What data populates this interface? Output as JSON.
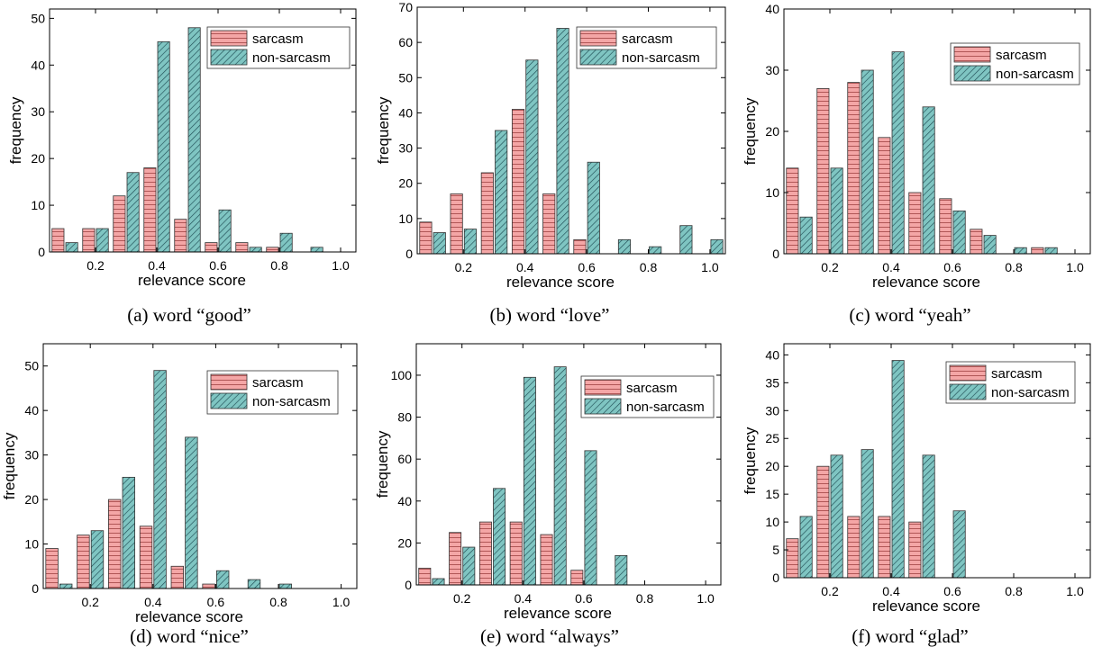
{
  "colors": {
    "sarcasm_fill": "#f4a6a6",
    "sarcasm_hatch": "#b05656",
    "non_sarcasm_fill": "#7fc5c2",
    "non_sarcasm_hatch": "#1f4d55",
    "axis": "#000000"
  },
  "captions": [
    "(a) word “good”",
    "(b) word “love”",
    "(c) word “yeah”",
    "(d) word “nice”",
    "(e) word “always”",
    "(f) word “glad”"
  ],
  "chart_data": [
    {
      "type": "bar",
      "xlabel": "relevance score",
      "ylabel": "frequency",
      "x": [
        0.1,
        0.2,
        0.3,
        0.4,
        0.5,
        0.6,
        0.7,
        0.8,
        0.9
      ],
      "series": [
        {
          "name": "sarcasm",
          "values": [
            5,
            5,
            12,
            18,
            7,
            2,
            2,
            1,
            0
          ]
        },
        {
          "name": "non-sarcasm",
          "values": [
            2,
            5,
            17,
            45,
            48,
            9,
            1,
            4,
            1
          ]
        }
      ],
      "xlim": [
        0.05,
        1.05
      ],
      "ylim": [
        0,
        52
      ],
      "xticks": [
        "0.2",
        "0.4",
        "0.6",
        "0.8",
        "1.0"
      ],
      "yticks": [
        "0",
        "10",
        "20",
        "30",
        "40",
        "50"
      ],
      "legend": "top-right"
    },
    {
      "type": "bar",
      "xlabel": "relevance score",
      "ylabel": "frequency",
      "x": [
        0.1,
        0.2,
        0.3,
        0.4,
        0.5,
        0.6,
        0.7,
        0.8,
        0.9,
        1.0
      ],
      "series": [
        {
          "name": "sarcasm",
          "values": [
            9,
            17,
            23,
            41,
            17,
            4,
            0,
            0,
            0,
            0
          ]
        },
        {
          "name": "non-sarcasm",
          "values": [
            6,
            7,
            35,
            55,
            64,
            26,
            4,
            2,
            8,
            4
          ]
        }
      ],
      "xlim": [
        0.05,
        1.05
      ],
      "ylim": [
        0,
        70
      ],
      "xticks": [
        "0.2",
        "0.4",
        "0.6",
        "0.8",
        "1.0"
      ],
      "yticks": [
        "0",
        "10",
        "20",
        "30",
        "40",
        "50",
        "60",
        "70"
      ],
      "legend": "top-right"
    },
    {
      "type": "bar",
      "xlabel": "relevance score",
      "ylabel": "frequency",
      "x": [
        0.1,
        0.2,
        0.3,
        0.4,
        0.5,
        0.6,
        0.7,
        0.8,
        0.9
      ],
      "series": [
        {
          "name": "sarcasm",
          "values": [
            14,
            27,
            28,
            19,
            10,
            9,
            4,
            0,
            1
          ]
        },
        {
          "name": "non-sarcasm",
          "values": [
            6,
            14,
            30,
            33,
            24,
            7,
            3,
            1,
            1
          ]
        }
      ],
      "xlim": [
        0.05,
        1.05
      ],
      "ylim": [
        0,
        40
      ],
      "xticks": [
        "0.2",
        "0.4",
        "0.6",
        "0.8",
        "1.0"
      ],
      "yticks": [
        "0",
        "10",
        "20",
        "30",
        "40"
      ],
      "legend": "top-right"
    },
    {
      "type": "bar",
      "xlabel": "relevance score",
      "ylabel": "frequency",
      "x": [
        0.1,
        0.2,
        0.3,
        0.4,
        0.5,
        0.6,
        0.7,
        0.8
      ],
      "series": [
        {
          "name": "sarcasm",
          "values": [
            9,
            12,
            20,
            14,
            5,
            1,
            0,
            0
          ]
        },
        {
          "name": "non-sarcasm",
          "values": [
            1,
            13,
            25,
            49,
            34,
            4,
            2,
            1
          ]
        }
      ],
      "xlim": [
        0.05,
        1.05
      ],
      "ylim": [
        0,
        55
      ],
      "xticks": [
        "0.2",
        "0.4",
        "0.6",
        "0.8",
        "1.0"
      ],
      "yticks": [
        "0",
        "10",
        "20",
        "30",
        "40",
        "50"
      ],
      "legend": "top-right"
    },
    {
      "type": "bar",
      "xlabel": "relevance score",
      "ylabel": "frequency",
      "x": [
        0.1,
        0.2,
        0.3,
        0.4,
        0.5,
        0.6,
        0.7
      ],
      "series": [
        {
          "name": "sarcasm",
          "values": [
            8,
            25,
            30,
            30,
            24,
            7,
            0
          ]
        },
        {
          "name": "non-sarcasm",
          "values": [
            3,
            18,
            46,
            99,
            104,
            64,
            14
          ]
        }
      ],
      "xlim": [
        0.05,
        1.05
      ],
      "ylim": [
        0,
        115
      ],
      "xticks": [
        "0.2",
        "0.4",
        "0.6",
        "0.8",
        "1.0"
      ],
      "yticks": [
        "0",
        "20",
        "40",
        "60",
        "80",
        "100"
      ],
      "legend": "top-right"
    },
    {
      "type": "bar",
      "xlabel": "relevance score",
      "ylabel": "frequency",
      "x": [
        0.1,
        0.2,
        0.3,
        0.4,
        0.5,
        0.6
      ],
      "series": [
        {
          "name": "sarcasm",
          "values": [
            7,
            20,
            11,
            11,
            10,
            0
          ]
        },
        {
          "name": "non-sarcasm",
          "values": [
            11,
            22,
            23,
            39,
            22,
            12
          ]
        }
      ],
      "xlim": [
        0.05,
        1.05
      ],
      "ylim": [
        0,
        42
      ],
      "xticks": [
        "0.2",
        "0.4",
        "0.6",
        "0.8",
        "1.0"
      ],
      "yticks": [
        "0",
        "5",
        "10",
        "15",
        "20",
        "25",
        "30",
        "35",
        "40"
      ],
      "legend": "top-right"
    }
  ]
}
